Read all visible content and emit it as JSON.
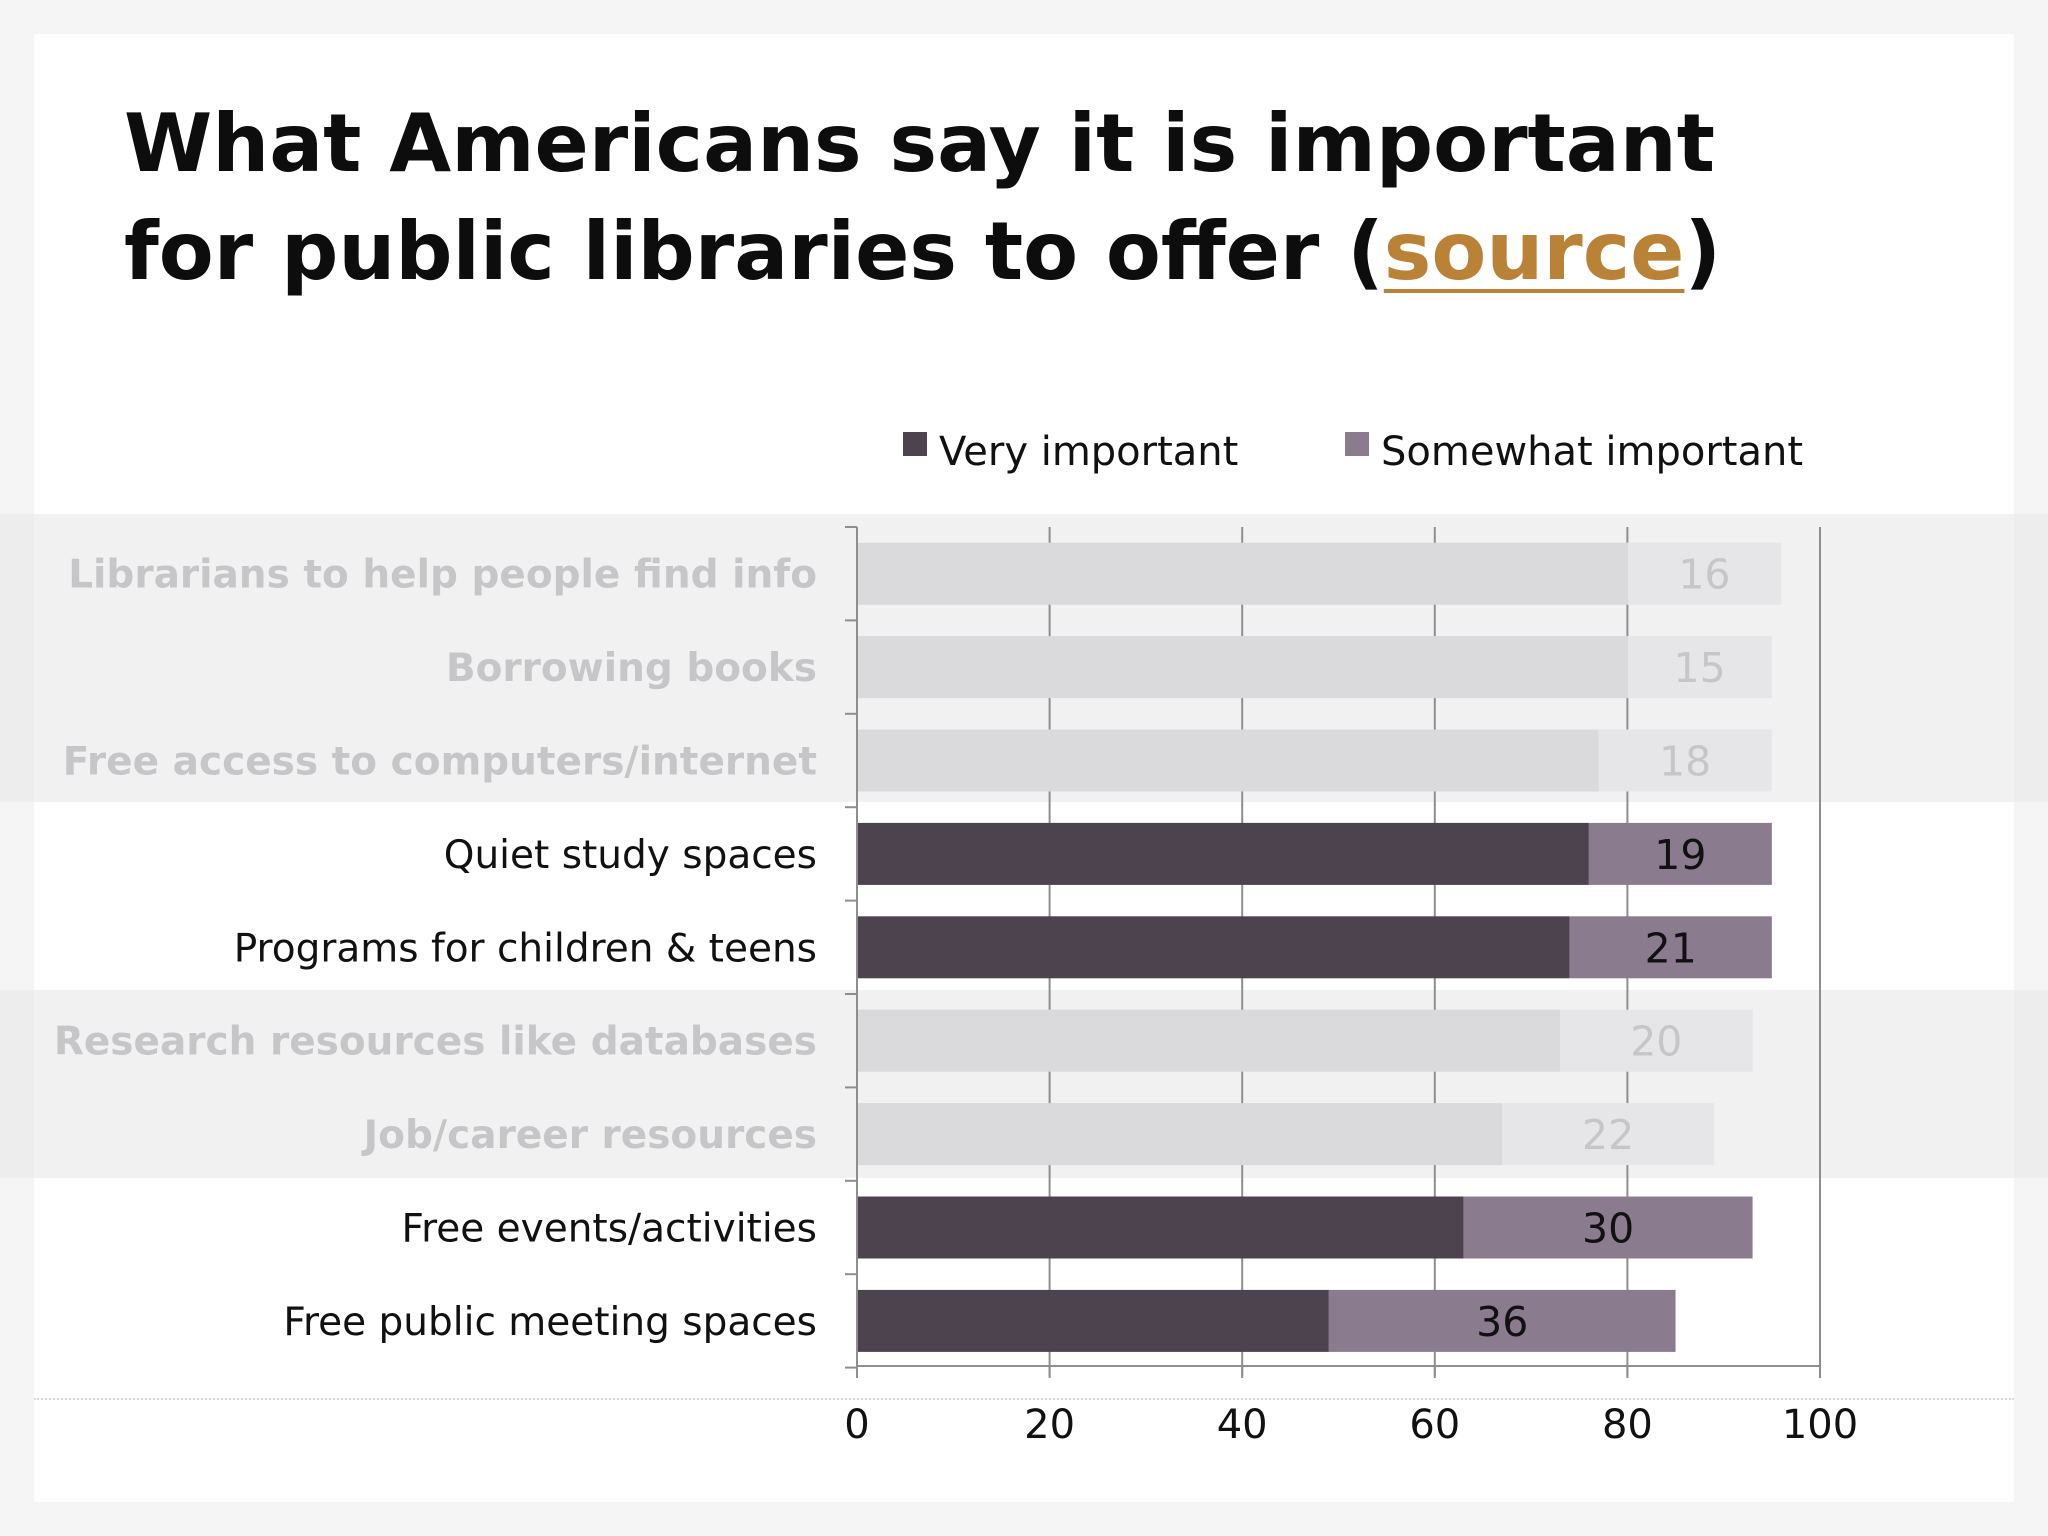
{
  "title": {
    "prefix": "What Americans say it is important for public libraries to offer (",
    "link_text": "source",
    "suffix": ")"
  },
  "colors": {
    "very_important": "#4c434f",
    "somewhat_important": "#8a7c8e",
    "faded_very": "#dadadc",
    "faded_somewhat": "#e6e6e8",
    "faded_text": "#c6c6c8",
    "text": "#111111",
    "link": "#b98236"
  },
  "chart_data": {
    "type": "bar",
    "orientation": "horizontal",
    "stacked": true,
    "categories": [
      "Librarians to help people find info",
      "Borrowing books",
      "Free access to computers/internet",
      "Quiet study spaces",
      "Programs for children &  teens",
      "Research resources like databases",
      "Job/career resources",
      "Free events/activities",
      "Free public meeting spaces"
    ],
    "highlighted": [
      false,
      false,
      false,
      true,
      true,
      false,
      false,
      true,
      true
    ],
    "series": [
      {
        "name": "Very important",
        "values": [
          80,
          80,
          77,
          76,
          74,
          73,
          67,
          63,
          49
        ]
      },
      {
        "name": "Somewhat important",
        "values": [
          16,
          15,
          18,
          19,
          21,
          20,
          22,
          30,
          36
        ]
      }
    ],
    "data_labels": [
      "16",
      "15",
      "18",
      "19",
      "21",
      "20",
      "22",
      "30",
      "36"
    ],
    "xlim": [
      0,
      100
    ],
    "xticks": [
      0,
      20,
      40,
      60,
      80,
      100
    ],
    "grid": true,
    "legend_position": "top"
  }
}
